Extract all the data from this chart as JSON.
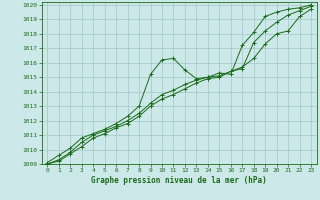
{
  "title": "Graphe pression niveau de la mer (hPa)",
  "bg_color": "#cce8e8",
  "grid_color": "#aacccc",
  "line_color": "#1a6b1a",
  "marker_color": "#1a6b1a",
  "xlim": [
    -0.5,
    23.5
  ],
  "ylim": [
    1009,
    1020.2
  ],
  "xticks": [
    0,
    1,
    2,
    3,
    4,
    5,
    6,
    7,
    8,
    9,
    10,
    11,
    12,
    13,
    14,
    15,
    16,
    17,
    18,
    19,
    20,
    21,
    22,
    23
  ],
  "yticks": [
    1009,
    1010,
    1011,
    1012,
    1013,
    1014,
    1015,
    1016,
    1017,
    1018,
    1019,
    1020
  ],
  "curve1_x": [
    0,
    1,
    2,
    3,
    4,
    5,
    6,
    7,
    8,
    9,
    10,
    11,
    12,
    13,
    14,
    15,
    16,
    17,
    18,
    19,
    20,
    21,
    22,
    23
  ],
  "curve1_y": [
    1009.1,
    1009.6,
    1010.1,
    1010.8,
    1011.1,
    1011.4,
    1011.8,
    1012.3,
    1013.0,
    1015.2,
    1016.2,
    1016.3,
    1015.5,
    1014.9,
    1015.0,
    1015.3,
    1015.2,
    1017.2,
    1018.1,
    1019.2,
    1019.5,
    1019.7,
    1019.8,
    1020.0
  ],
  "curve2_x": [
    0,
    1,
    2,
    3,
    4,
    5,
    6,
    7,
    8,
    9,
    10,
    11,
    12,
    13,
    14,
    15,
    16,
    17,
    18,
    19,
    20,
    21,
    22,
    23
  ],
  "curve2_y": [
    1009.0,
    1009.3,
    1009.8,
    1010.5,
    1011.0,
    1011.3,
    1011.6,
    1012.0,
    1012.5,
    1013.2,
    1013.8,
    1014.1,
    1014.5,
    1014.8,
    1015.0,
    1015.1,
    1015.4,
    1015.6,
    1017.4,
    1018.2,
    1018.8,
    1019.3,
    1019.6,
    1019.9
  ],
  "curve3_x": [
    0,
    1,
    2,
    3,
    4,
    5,
    6,
    7,
    8,
    9,
    10,
    11,
    12,
    13,
    14,
    15,
    16,
    17,
    18,
    19,
    20,
    21,
    22,
    23
  ],
  "curve3_y": [
    1009.0,
    1009.2,
    1009.7,
    1010.2,
    1010.8,
    1011.1,
    1011.5,
    1011.8,
    1012.3,
    1013.0,
    1013.5,
    1013.8,
    1014.2,
    1014.6,
    1014.9,
    1015.0,
    1015.4,
    1015.7,
    1016.3,
    1017.3,
    1018.0,
    1018.2,
    1019.2,
    1019.7
  ]
}
